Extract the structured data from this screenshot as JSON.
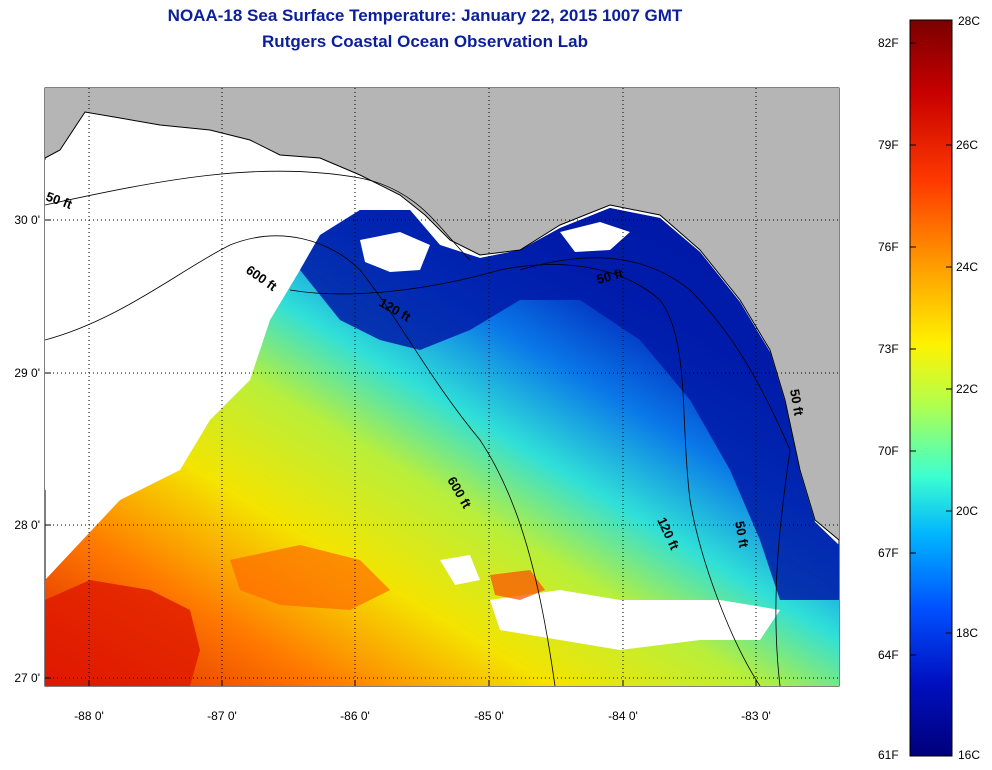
{
  "header": {
    "title": "NOAA-18 Sea Surface Temperature:  January 22, 2015 1007 GMT",
    "subtitle": "Rutgers Coastal Ocean Observation Lab"
  },
  "map": {
    "lon_ticks": [
      "-88 0'",
      "-87 0'",
      "-86 0'",
      "-85 0'",
      "-84 0'",
      "-83 0'"
    ],
    "lat_ticks": [
      "30 0'",
      "29 0'",
      "28 0'",
      "27 0'"
    ],
    "isobaths": [
      "50 ft",
      "600 ft",
      "120 ft",
      "50 ft",
      "600 ft",
      "120 ft",
      "50 ft",
      "50 ft"
    ],
    "colors": {
      "land": "#b5b5b5",
      "cloud": "#ffffff",
      "coast": "#000000"
    }
  },
  "colorbar": {
    "fahrenheit": [
      "82F",
      "79F",
      "76F",
      "73F",
      "70F",
      "67F",
      "64F",
      "61F"
    ],
    "celsius": [
      "28C",
      "26C",
      "24C",
      "22C",
      "20C",
      "18C",
      "16C"
    ],
    "stops": [
      "#7a0000",
      "#c80000",
      "#ff3a00",
      "#ff9900",
      "#fff200",
      "#b4ff4a",
      "#3cffd0",
      "#00b4ff",
      "#0050ff",
      "#0010c0",
      "#00007a"
    ]
  }
}
